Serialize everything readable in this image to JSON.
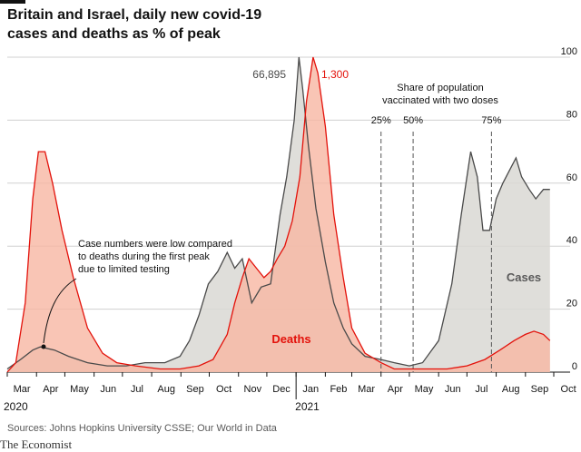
{
  "title": "Britain and Israel, daily new covid-19 cases and deaths as % of peak",
  "source": "Sources: Johns Hopkins University CSSE; Our World in Data",
  "brand": "The Economist",
  "colors": {
    "cases_fill": "#d9d8d3",
    "cases_line": "#4a4a4a",
    "deaths_fill": "#f7b7a3",
    "deaths_line": "#e3120b",
    "grid": "#d0d0d0"
  },
  "chart_data": {
    "type": "area",
    "title": "Britain and Israel, daily new covid-19 cases and deaths as % of peak",
    "ylim": [
      0,
      100
    ],
    "yticks": [
      0,
      20,
      40,
      60,
      80,
      100
    ],
    "x_month_labels": [
      "Mar",
      "Apr",
      "May",
      "Jun",
      "Jul",
      "Aug",
      "Sep",
      "Oct",
      "Nov",
      "Dec",
      "Jan",
      "Feb",
      "Mar",
      "Apr",
      "May",
      "Jun",
      "Jul",
      "Aug",
      "Sep",
      "Oct"
    ],
    "year_labels": [
      "2020",
      "2021"
    ],
    "series": [
      {
        "name": "Cases",
        "peak_label": "66,895",
        "x": [
          "2020-03-01",
          "2020-03-15",
          "2020-03-28",
          "2020-04-05",
          "2020-04-20",
          "2020-05-05",
          "2020-05-25",
          "2020-06-15",
          "2020-07-05",
          "2020-07-25",
          "2020-08-15",
          "2020-08-31",
          "2020-09-10",
          "2020-09-20",
          "2020-09-30",
          "2020-10-10",
          "2020-10-20",
          "2020-10-28",
          "2020-11-05",
          "2020-11-15",
          "2020-11-25",
          "2020-12-05",
          "2020-12-15",
          "2020-12-22",
          "2020-12-30",
          "2021-01-04",
          "2021-01-08",
          "2021-01-14",
          "2021-01-22",
          "2021-02-01",
          "2021-02-10",
          "2021-02-20",
          "2021-03-01",
          "2021-03-15",
          "2021-04-01",
          "2021-04-15",
          "2021-05-01",
          "2021-05-15",
          "2021-06-01",
          "2021-06-15",
          "2021-06-25",
          "2021-07-05",
          "2021-07-12",
          "2021-07-18",
          "2021-07-25",
          "2021-08-01",
          "2021-08-08",
          "2021-08-15",
          "2021-08-22",
          "2021-08-28",
          "2021-09-05",
          "2021-09-12",
          "2021-09-20",
          "2021-09-27"
        ],
        "values": [
          1,
          4,
          7,
          8,
          7,
          5,
          3,
          2,
          2,
          3,
          3,
          5,
          10,
          18,
          28,
          32,
          38,
          33,
          36,
          22,
          27,
          28,
          50,
          62,
          80,
          100,
          90,
          72,
          52,
          35,
          22,
          14,
          9,
          5,
          4,
          3,
          2,
          3,
          10,
          28,
          50,
          70,
          62,
          45,
          45,
          55,
          60,
          64,
          68,
          62,
          58,
          55,
          58,
          58
        ]
      },
      {
        "name": "Deaths",
        "peak_label": "1,300",
        "x": [
          "2020-03-01",
          "2020-03-10",
          "2020-03-20",
          "2020-03-28",
          "2020-04-03",
          "2020-04-10",
          "2020-04-18",
          "2020-04-28",
          "2020-05-10",
          "2020-05-25",
          "2020-06-10",
          "2020-06-25",
          "2020-07-15",
          "2020-08-10",
          "2020-08-31",
          "2020-09-20",
          "2020-10-05",
          "2020-10-20",
          "2020-10-28",
          "2020-11-05",
          "2020-11-12",
          "2020-11-20",
          "2020-11-28",
          "2020-12-05",
          "2020-12-12",
          "2020-12-20",
          "2020-12-28",
          "2021-01-05",
          "2021-01-12",
          "2021-01-19",
          "2021-01-24",
          "2021-02-01",
          "2021-02-10",
          "2021-02-20",
          "2021-03-01",
          "2021-03-15",
          "2021-04-01",
          "2021-04-15",
          "2021-05-01",
          "2021-05-20",
          "2021-06-10",
          "2021-07-01",
          "2021-07-20",
          "2021-08-05",
          "2021-08-20",
          "2021-09-01",
          "2021-09-10",
          "2021-09-20",
          "2021-09-27"
        ],
        "values": [
          0,
          3,
          22,
          55,
          70,
          70,
          60,
          45,
          30,
          14,
          6,
          3,
          2,
          1,
          1,
          2,
          4,
          12,
          22,
          30,
          36,
          33,
          30,
          32,
          36,
          40,
          48,
          62,
          86,
          100,
          95,
          78,
          50,
          30,
          14,
          6,
          3,
          1,
          1,
          1,
          1,
          2,
          4,
          7,
          10,
          12,
          13,
          12,
          10
        ]
      }
    ],
    "annotations": {
      "vaccination_title": [
        "Share of population",
        "vaccinated with two doses"
      ],
      "vaccination_markers": [
        {
          "label": "25%",
          "x": "2021-04-01"
        },
        {
          "label": "50%",
          "x": "2021-05-05"
        },
        {
          "label": "75%",
          "x": "2021-07-27"
        }
      ],
      "note": [
        "Case numbers were low compared",
        "to deaths during the first peak",
        "due to limited testing"
      ],
      "series_labels": {
        "cases": "Cases",
        "deaths": "Deaths"
      }
    }
  }
}
